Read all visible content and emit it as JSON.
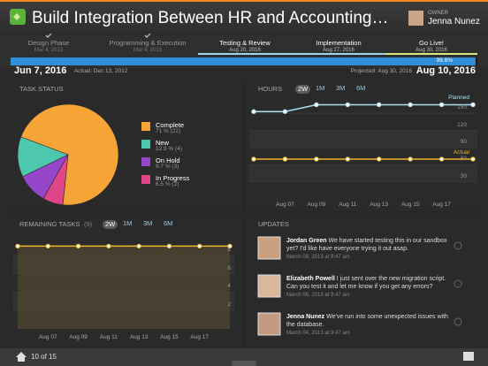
{
  "header": {
    "title": "Build Integration Between HR and Accounting…",
    "owner_label": "OWNER",
    "owner_name": "Jenna Nunez"
  },
  "phases": [
    {
      "name": "Design Phase",
      "date": "Mar 4, 2013",
      "done": true
    },
    {
      "name": "Programming & Execution",
      "date": "Mar 4, 2013",
      "done": true
    },
    {
      "name": "Testing & Review",
      "date": "Aug 20, 2016",
      "done": false
    },
    {
      "name": "Implementation",
      "date": "Aug 27, 2016",
      "done": false
    },
    {
      "name": "Go Live!",
      "date": "Aug 30, 2016",
      "done": false
    }
  ],
  "progress": {
    "value": 99.6,
    "label": "99.6%"
  },
  "dates": {
    "start": "Jun 7, 2016",
    "actual": "Actual: Dec 13, 2012",
    "projected": "Projected: Aug 30, 2016",
    "end": "Aug 10, 2016"
  },
  "task_status": {
    "title": "TASK STATUS",
    "type": "pie",
    "categories": [
      "Complete",
      "New",
      "On Hold",
      "In Progress"
    ],
    "values": [
      71,
      12.9,
      9.7,
      6.5
    ],
    "value_labels": [
      "71 % (22)",
      "12.9 % (4)",
      "9.7 % (3)",
      "6.5 % (2)"
    ],
    "colors": [
      "#f7a437",
      "#4dc7ae",
      "#9646c8",
      "#de4688"
    ]
  },
  "hours": {
    "title": "HOURS",
    "type": "line",
    "ranges": [
      "2W",
      "1M",
      "3M",
      "6M"
    ],
    "categories": [
      null,
      "Aug 07",
      "Aug 09",
      "Aug 11",
      "Aug 13",
      "Aug 15",
      "Aug 17",
      null
    ],
    "series": [
      {
        "name": "Planned",
        "color": "#a9e2f3",
        "values": [
          153,
          153,
          165,
          165,
          165,
          165,
          165,
          165
        ]
      },
      {
        "name": "Actual",
        "color": "#f0b429",
        "values": [
          70,
          70,
          70,
          70,
          70,
          70,
          70,
          70
        ]
      }
    ],
    "ylim": [
      5,
      175
    ],
    "yticks": [
      30,
      60,
      90,
      120,
      150
    ]
  },
  "remaining": {
    "title": "REMAINING TASKS",
    "count_label": "(9)",
    "type": "line",
    "ranges": [
      "2W",
      "1M",
      "3M",
      "6M"
    ],
    "categories": [
      null,
      "Aug 07",
      "Aug 09",
      "Aug 11",
      "Aug 13",
      "Aug 15",
      "Aug 17",
      null
    ],
    "series": [
      {
        "color": "#f0b429",
        "values": [
          9,
          9,
          9,
          9,
          9,
          9,
          9,
          9
        ]
      }
    ],
    "ylim": [
      0,
      10
    ],
    "yticks": [
      2,
      4,
      6,
      8
    ]
  },
  "updates": {
    "title": "UPDATES",
    "items": [
      {
        "author": "Jordan Green",
        "text": "We have started testing this in our sandbox yet? I'd like have everyone trying it out asap.",
        "date": "March 09, 2013 at 9:47 am"
      },
      {
        "author": "Elizabeth Powell",
        "text": "I just sent over the new migration script. Can you test it and let me know if you get any errors?",
        "date": "March 09, 2013 at 9:47 am"
      },
      {
        "author": "Jenna Nunez",
        "text": "We've run into some unexpected issues with the database.",
        "date": "March 04, 2013 at 9:47 am"
      }
    ]
  },
  "footer": {
    "page": "10 of 15"
  }
}
